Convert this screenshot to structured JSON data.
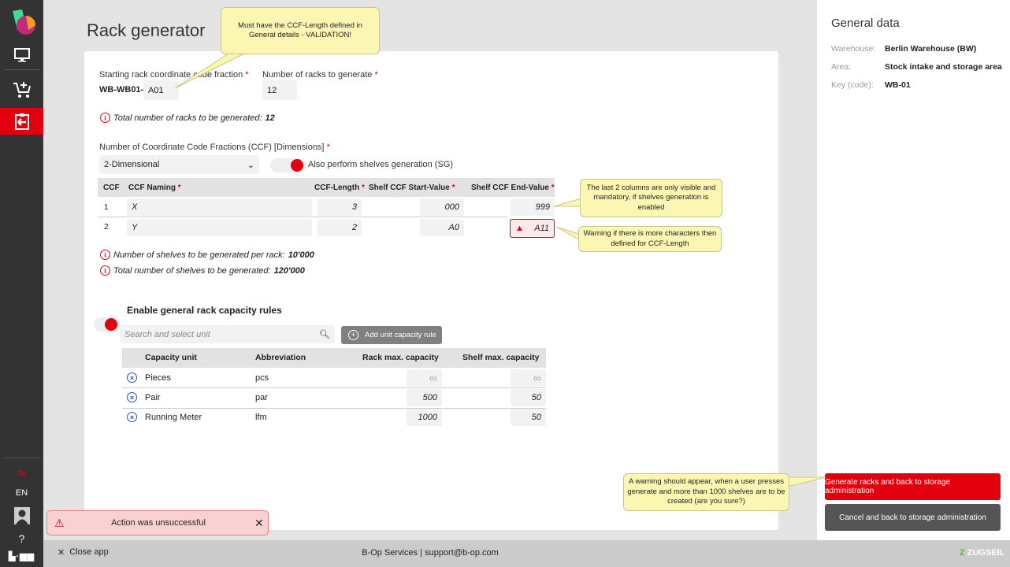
{
  "sidebar": {
    "items": [
      {
        "icon": "logo-icon"
      },
      {
        "icon": "monitor-icon"
      },
      {
        "icon": "cart-add-icon"
      },
      {
        "icon": "clipboard-import-icon",
        "active": true
      }
    ],
    "bottom": {
      "team_icon": "team-switch-icon",
      "language": "EN",
      "avatar_icon": "user-avatar-icon",
      "help_icon": "help-icon",
      "brand": "b-op"
    }
  },
  "page": {
    "title": "Rack generator"
  },
  "form": {
    "start_label": "Starting rack coordinate code fraction",
    "start_prefix": "WB-WB01-",
    "start_value": "A01",
    "count_label": "Number of racks to generate",
    "count_value": "12",
    "total_racks_label": "Total number of racks to be generated:",
    "total_racks_value": "12",
    "ccf_label": "Number of Coordinate Code Fractions (CCF) [Dimensions]",
    "ccf_value": "2-Dimensional",
    "sg_label": "Also perform shelves generation (SG)",
    "sg_enabled": true,
    "ccf_table": {
      "headers": [
        "CCF",
        "CCF Naming",
        "CCF-Length",
        "Shelf CCF Start-Value",
        "Shelf CCF End-Value"
      ],
      "rows": [
        {
          "n": "1",
          "naming": "X",
          "length": "3",
          "start": "000",
          "end": "999",
          "warning": false
        },
        {
          "n": "2",
          "naming": "Y",
          "length": "2",
          "start": "A0",
          "end": "A11",
          "warning": true
        }
      ]
    },
    "shelves_per_rack_label": "Number of shelves to be generated per rack:",
    "shelves_per_rack_value": "10'000",
    "total_shelves_label": "Total number of shelves to be generated:",
    "total_shelves_value": "120'000",
    "capacity_label": "Enable general rack capacity rules",
    "capacity_enabled": true,
    "search_placeholder": "Search and select unit",
    "add_rule_label": "Add unit capacity rule",
    "cap_table": {
      "headers": [
        "Capacity unit",
        "Abbreviation",
        "Rack max. capacity",
        "Shelf max. capacity"
      ],
      "rows": [
        {
          "unit": "Pieces",
          "abbr": "pcs",
          "rack": "∞",
          "shelf": "∞"
        },
        {
          "unit": "Pair",
          "abbr": "par",
          "rack": "500",
          "shelf": "50"
        },
        {
          "unit": "Running Meter",
          "abbr": "lfm",
          "rack": "1000",
          "shelf": "50"
        }
      ]
    }
  },
  "notes": {
    "validation": "Must have the CCF-Length defined in General details - VALIDATION!",
    "columns": "The last 2 columns are only visible and mandatory, if shelves generation is enabled",
    "warning": "Warning if there is more characters then defined for CCF-Length",
    "generate": "A warning should appear, when a user presses generate and more than 1000 shelves are to be created (are you sure?)"
  },
  "toast": {
    "message": "Action was unsuccessful"
  },
  "general": {
    "title": "General data",
    "rows": [
      {
        "k": "Warehouse:",
        "v": "Berlin Warehouse (BW)"
      },
      {
        "k": "Area:",
        "v": "Stock intake and storage area"
      },
      {
        "k": "Key (code):",
        "v": "WB-01"
      }
    ]
  },
  "actions": {
    "generate": "Generate racks and back to storage administration",
    "cancel": "Cancel and back to storage administration"
  },
  "footer": {
    "close": "Close app",
    "center": "B-Op Services | support@b-op.com",
    "brand": "ZUGSEIL"
  },
  "colors": {
    "accent": "#e2000f",
    "sidebar": "#333333",
    "note": "#fbf7b3"
  }
}
